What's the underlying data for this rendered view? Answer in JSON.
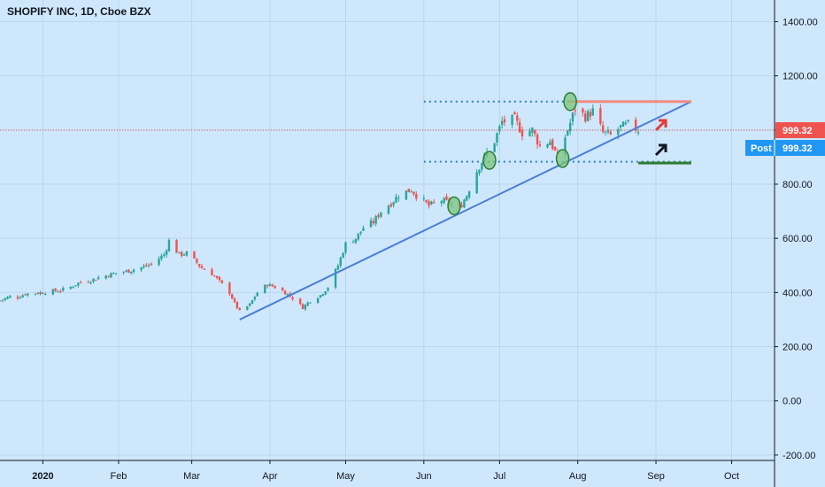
{
  "header": {
    "title": "SHOPIFY INC, 1D, Cboe BZX"
  },
  "price_tags": {
    "last_price": "999.32",
    "post_label": "Post",
    "post_price": "999.32",
    "last_color": "#ef5350",
    "post_color": "#2196f3"
  },
  "colors": {
    "background": "#cfe7fb",
    "up": "#26a69a",
    "down": "#ef5350",
    "trendline": "#4a7fd4",
    "resistance": "#f28b82",
    "support": "#2e7d32",
    "dotted": "#2a7fc9",
    "circle_fill": "#7bc47f",
    "circle_stroke": "#2e7d32"
  },
  "chart_data": {
    "type": "candlestick",
    "title": "SHOPIFY INC, 1D, Cboe BZX",
    "y_ticks": [
      "1400.00",
      "1200.00",
      "1000.00",
      "800.00",
      "600.00",
      "400.00",
      "200.00",
      "0.00",
      "-200.00"
    ],
    "y_tick_values": [
      1400,
      1200,
      1000,
      800,
      600,
      400,
      200,
      0,
      -200
    ],
    "x_ticks": [
      "2020",
      "Feb",
      "Mar",
      "Apr",
      "May",
      "Jun",
      "Jul",
      "Aug",
      "Sep",
      "Oct"
    ],
    "x_tick_dates": [
      "2020-01-02",
      "2020-02-01",
      "2020-03-01",
      "2020-04-01",
      "2020-05-01",
      "2020-06-01",
      "2020-07-01",
      "2020-08-01",
      "2020-09-01",
      "2020-10-01"
    ],
    "ylim": [
      -220,
      1480
    ],
    "xlim": [
      "2019-12-16",
      "2020-10-18"
    ],
    "closes": [
      [
        "2019-12-16",
        370
      ],
      [
        "2019-12-18",
        378
      ],
      [
        "2019-12-20",
        385
      ],
      [
        "2019-12-23",
        383
      ],
      [
        "2019-12-26",
        395
      ],
      [
        "2019-12-30",
        398
      ],
      [
        "2020-01-02",
        400
      ],
      [
        "2020-01-06",
        405
      ],
      [
        "2020-01-09",
        408
      ],
      [
        "2020-01-13",
        420
      ],
      [
        "2020-01-16",
        435
      ],
      [
        "2020-01-21",
        445
      ],
      [
        "2020-01-24",
        455
      ],
      [
        "2020-01-28",
        465
      ],
      [
        "2020-01-31",
        472
      ],
      [
        "2020-02-04",
        478
      ],
      [
        "2020-02-07",
        485
      ],
      [
        "2020-02-11",
        495
      ],
      [
        "2020-02-14",
        505
      ],
      [
        "2020-02-19",
        540
      ],
      [
        "2020-02-21",
        590
      ],
      [
        "2020-02-25",
        540
      ],
      [
        "2020-02-28",
        545
      ],
      [
        "2020-03-03",
        510
      ],
      [
        "2020-03-05",
        490
      ],
      [
        "2020-03-09",
        470
      ],
      [
        "2020-03-12",
        440
      ],
      [
        "2020-03-16",
        400
      ],
      [
        "2020-03-18",
        360
      ],
      [
        "2020-03-20",
        330
      ],
      [
        "2020-03-24",
        355
      ],
      [
        "2020-03-27",
        400
      ],
      [
        "2020-03-31",
        430
      ],
      [
        "2020-04-03",
        420
      ],
      [
        "2020-04-07",
        400
      ],
      [
        "2020-04-10",
        380
      ],
      [
        "2020-04-14",
        345
      ],
      [
        "2020-04-17",
        370
      ],
      [
        "2020-04-21",
        390
      ],
      [
        "2020-04-24",
        420
      ],
      [
        "2020-04-28",
        500
      ],
      [
        "2020-05-01",
        580
      ],
      [
        "2020-05-05",
        600
      ],
      [
        "2020-05-08",
        640
      ],
      [
        "2020-05-12",
        660
      ],
      [
        "2020-05-15",
        700
      ],
      [
        "2020-05-19",
        730
      ],
      [
        "2020-05-22",
        760
      ],
      [
        "2020-05-27",
        780
      ],
      [
        "2020-05-29",
        760
      ],
      [
        "2020-06-03",
        720
      ],
      [
        "2020-06-08",
        740
      ],
      [
        "2020-06-11",
        730
      ],
      [
        "2020-06-15",
        710
      ],
      [
        "2020-06-18",
        760
      ],
      [
        "2020-06-22",
        850
      ],
      [
        "2020-06-25",
        900
      ],
      [
        "2020-06-29",
        960
      ],
      [
        "2020-07-02",
        1030
      ],
      [
        "2020-07-07",
        1040
      ],
      [
        "2020-07-10",
        990
      ],
      [
        "2020-07-14",
        1000
      ],
      [
        "2020-07-17",
        940
      ],
      [
        "2020-07-21",
        960
      ],
      [
        "2020-07-24",
        900
      ],
      [
        "2020-07-28",
        1000
      ],
      [
        "2020-07-31",
        1080
      ],
      [
        "2020-08-04",
        1050
      ],
      [
        "2020-08-07",
        1070
      ],
      [
        "2020-08-11",
        990
      ],
      [
        "2020-08-14",
        980
      ],
      [
        "2020-08-18",
        1010
      ],
      [
        "2020-08-21",
        1020
      ],
      [
        "2020-08-25",
        999.32
      ]
    ],
    "annotations": [
      {
        "kind": "trendline",
        "from": [
          "2020-03-20",
          300
        ],
        "to": [
          "2020-09-15",
          1105
        ]
      },
      {
        "kind": "hline_dotted",
        "y": 1105,
        "from": "2020-06-01",
        "to": "2020-09-15"
      },
      {
        "kind": "hline_dotted",
        "y": 883,
        "from": "2020-06-01",
        "to": "2020-09-15"
      },
      {
        "kind": "hline_resistance",
        "y": 1105,
        "from": "2020-07-28",
        "to": "2020-09-15"
      },
      {
        "kind": "hline_support",
        "y": 878,
        "from": "2020-08-25",
        "to": "2020-09-15"
      },
      {
        "kind": "circle",
        "at": [
          "2020-06-13",
          720
        ]
      },
      {
        "kind": "circle",
        "at": [
          "2020-06-27",
          888
        ]
      },
      {
        "kind": "circle",
        "at": [
          "2020-07-26",
          895
        ]
      },
      {
        "kind": "circle",
        "at": [
          "2020-07-29",
          1105
        ]
      }
    ]
  }
}
